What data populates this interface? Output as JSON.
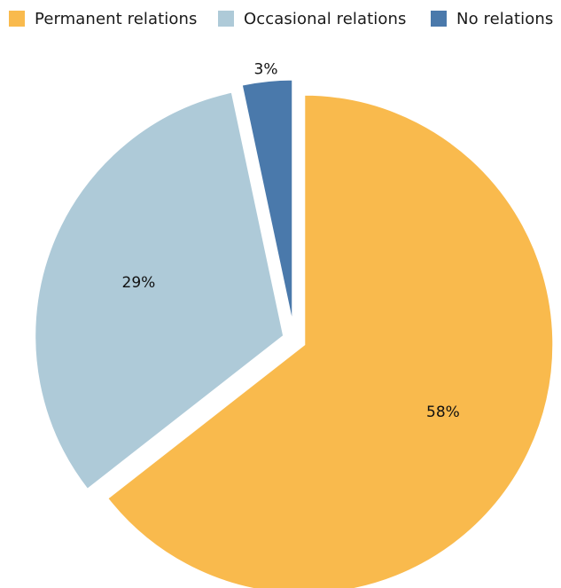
{
  "chart_data": {
    "type": "pie",
    "title": "",
    "legend_placement": "top",
    "slices": [
      {
        "name": "Permanent relations",
        "value": 58,
        "label": "58%",
        "color": "#f9ba4d"
      },
      {
        "name": "Occasional relations",
        "value": 29,
        "label": "29%",
        "color": "#aecad8"
      },
      {
        "name": "No relations",
        "value": 3,
        "label": "3%",
        "color": "#4a79ab"
      }
    ]
  }
}
